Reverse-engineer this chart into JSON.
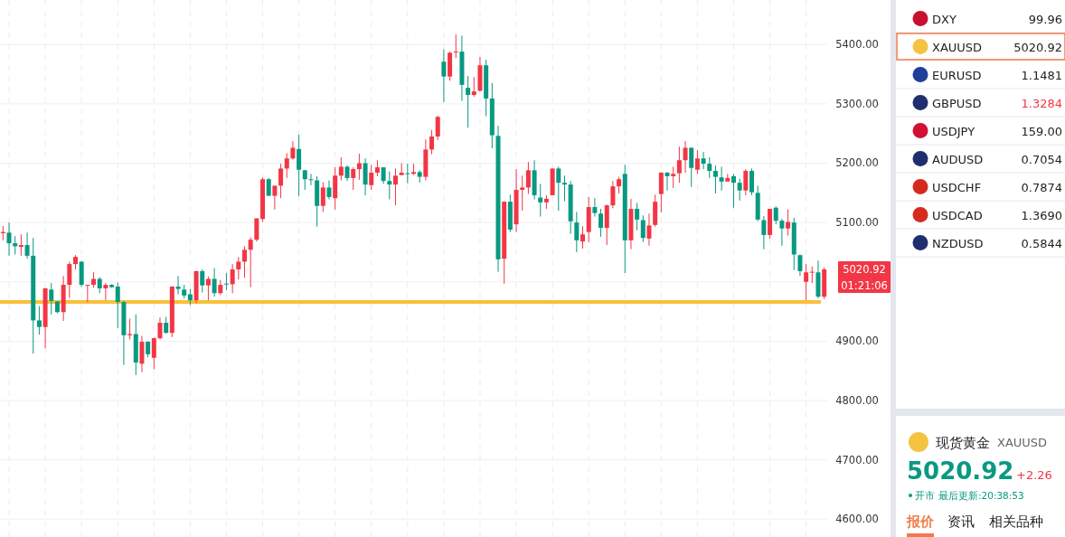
{
  "chart_data": [
    {
      "type": "candlestick",
      "tick_labels": "y",
      "grid": true,
      "categories": [
        null,
        null,
        null,
        null,
        null,
        null,
        null,
        null,
        null,
        null,
        null,
        null,
        null,
        null,
        null,
        null,
        null,
        null,
        null,
        null,
        null,
        null,
        null,
        null,
        null,
        null,
        null,
        null,
        null,
        null,
        null,
        null,
        null,
        null,
        null,
        null,
        null,
        null,
        null,
        null,
        null,
        null,
        null,
        null,
        null,
        null,
        null,
        null,
        null,
        null,
        null,
        null,
        null,
        null,
        null,
        null,
        null,
        null,
        null,
        null,
        null,
        null,
        null,
        null,
        null,
        null,
        null,
        null,
        null,
        null,
        null,
        null,
        null,
        null,
        null,
        null,
        null,
        null,
        null,
        null,
        null,
        null,
        null,
        null,
        null,
        null,
        null,
        null,
        null,
        null,
        null,
        null,
        null,
        null,
        null,
        null,
        null,
        null,
        null,
        null,
        null,
        null,
        null,
        null,
        null,
        null,
        null,
        null,
        null,
        null,
        null,
        null,
        null,
        null,
        null,
        null,
        null,
        null,
        null,
        null,
        null,
        null,
        null,
        null,
        null,
        null,
        null,
        null,
        null,
        null,
        null,
        null,
        null,
        null,
        null,
        null,
        null
      ],
      "ohlc": [
        [
          5082,
          5094,
          5070,
          5084
        ],
        [
          5083,
          5100,
          5044,
          5065
        ],
        [
          5065,
          5077,
          5046,
          5060
        ],
        [
          5059,
          5080,
          5044,
          5062
        ],
        [
          5062,
          5083,
          5039,
          5044
        ],
        [
          5044,
          5074,
          4879,
          4935
        ],
        [
          4935,
          4959,
          4911,
          4924
        ],
        [
          4924,
          4990,
          4888,
          4989
        ],
        [
          4987,
          4998,
          4945,
          4968
        ],
        [
          4967,
          4967,
          4947,
          4949
        ],
        [
          4949,
          5010,
          4934,
          4995
        ],
        [
          4995,
          5034,
          4973,
          5030
        ],
        [
          5030,
          5045,
          5021,
          5042
        ],
        [
          5034,
          5035,
          4992,
          4995
        ],
        [
          4994,
          4995,
          4966,
          4995
        ],
        [
          4995,
          5016,
          4990,
          5005
        ],
        [
          5005,
          5008,
          4981,
          4989
        ],
        [
          4989,
          4998,
          4969,
          4995
        ],
        [
          4995,
          4996,
          4990,
          4991
        ],
        [
          4992,
          4999,
          4922,
          4966
        ],
        [
          4966,
          4968,
          4860,
          4910
        ],
        [
          4910,
          4938,
          4903,
          4912
        ],
        [
          4912,
          4945,
          4843,
          4864
        ],
        [
          4862,
          4909,
          4848,
          4899
        ],
        [
          4899,
          4900,
          4873,
          4878
        ],
        [
          4872,
          4906,
          4853,
          4905
        ],
        [
          4905,
          4940,
          4903,
          4931
        ],
        [
          4931,
          4941,
          4913,
          4914
        ],
        [
          4914,
          4993,
          4907,
          4992
        ],
        [
          4992,
          5010,
          4979,
          4988
        ],
        [
          4987,
          4995,
          4972,
          4977
        ],
        [
          4979,
          4988,
          4961,
          4969
        ],
        [
          4969,
          5019,
          4964,
          5018
        ],
        [
          5018,
          5021,
          4982,
          4994
        ],
        [
          4994,
          5009,
          4969,
          5005
        ],
        [
          5005,
          5023,
          4975,
          4981
        ],
        [
          4981,
          5003,
          4978,
          4995
        ],
        [
          4997,
          5015,
          4986,
          4996
        ],
        [
          4996,
          5030,
          4981,
          5021
        ],
        [
          5021,
          5042,
          5004,
          5034
        ],
        [
          5034,
          5060,
          5007,
          5054
        ],
        [
          5054,
          5075,
          4991,
          5071
        ],
        [
          5071,
          5107,
          5068,
          5107
        ],
        [
          5106,
          5176,
          5101,
          5173
        ],
        [
          5173,
          5175,
          5145,
          5145
        ],
        [
          5145,
          5162,
          5122,
          5162
        ],
        [
          5162,
          5199,
          5141,
          5191
        ],
        [
          5191,
          5217,
          5175,
          5208
        ],
        [
          5208,
          5237,
          5206,
          5226
        ],
        [
          5224,
          5248,
          5145,
          5189
        ],
        [
          5188,
          5189,
          5155,
          5173
        ],
        [
          5173,
          5182,
          5163,
          5172
        ],
        [
          5171,
          5178,
          5093,
          5128
        ],
        [
          5128,
          5168,
          5118,
          5159
        ],
        [
          5159,
          5171,
          5139,
          5143
        ],
        [
          5141,
          5193,
          5122,
          5179
        ],
        [
          5179,
          5210,
          5171,
          5194
        ],
        [
          5194,
          5196,
          5170,
          5175
        ],
        [
          5175,
          5193,
          5155,
          5190
        ],
        [
          5190,
          5216,
          5172,
          5200
        ],
        [
          5200,
          5208,
          5146,
          5164
        ],
        [
          5163,
          5197,
          5155,
          5184
        ],
        [
          5184,
          5205,
          5178,
          5193
        ],
        [
          5193,
          5193,
          5165,
          5170
        ],
        [
          5170,
          5186,
          5139,
          5164
        ],
        [
          5164,
          5191,
          5129,
          5179
        ],
        [
          5180,
          5200,
          5180,
          5184
        ],
        [
          5183,
          5199,
          5166,
          5183
        ],
        [
          5182,
          5199,
          5180,
          5185
        ],
        [
          5185,
          5188,
          5167,
          5177
        ],
        [
          5177,
          5240,
          5171,
          5223
        ],
        [
          5223,
          5256,
          5215,
          5245
        ],
        [
          5245,
          5280,
          5239,
          5278
        ],
        [
          5371,
          5392,
          5303,
          5346
        ],
        [
          5346,
          5388,
          5339,
          5386
        ],
        [
          5387,
          5417,
          5377,
          5388
        ],
        [
          5388,
          5415,
          5305,
          5332
        ],
        [
          5327,
          5347,
          5260,
          5315
        ],
        [
          5315,
          5345,
          5312,
          5321
        ],
        [
          5322,
          5379,
          5321,
          5365
        ],
        [
          5365,
          5374,
          5279,
          5309
        ],
        [
          5309,
          5335,
          5225,
          5247
        ],
        [
          5246,
          5263,
          5017,
          5038
        ],
        [
          5039,
          5136,
          4997,
          5135
        ],
        [
          5135,
          5147,
          5084,
          5088
        ],
        [
          5097,
          5190,
          5084,
          5155
        ],
        [
          5155,
          5179,
          5120,
          5159
        ],
        [
          5159,
          5202,
          5148,
          5188
        ],
        [
          5188,
          5205,
          5139,
          5146
        ],
        [
          5142,
          5165,
          5110,
          5134
        ],
        [
          5134,
          5146,
          5123,
          5140
        ],
        [
          5146,
          5191,
          5146,
          5191
        ],
        [
          5191,
          5194,
          5120,
          5167
        ],
        [
          5167,
          5179,
          5136,
          5164
        ],
        [
          5164,
          5170,
          5081,
          5102
        ],
        [
          5100,
          5118,
          5050,
          5070
        ],
        [
          5068,
          5094,
          5056,
          5080
        ],
        [
          5084,
          5143,
          5067,
          5126
        ],
        [
          5126,
          5141,
          5110,
          5116
        ],
        [
          5115,
          5123,
          5076,
          5091
        ],
        [
          5091,
          5130,
          5062,
          5129
        ],
        [
          5129,
          5170,
          5124,
          5161
        ],
        [
          5161,
          5177,
          5149,
          5173
        ],
        [
          5182,
          5197,
          5015,
          5070
        ],
        [
          5070,
          5140,
          5055,
          5123
        ],
        [
          5123,
          5133,
          5087,
          5105
        ],
        [
          5104,
          5112,
          5067,
          5074
        ],
        [
          5073,
          5115,
          5061,
          5095
        ],
        [
          5096,
          5147,
          5093,
          5135
        ],
        [
          5148,
          5185,
          5117,
          5184
        ],
        [
          5184,
          5185,
          5154,
          5178
        ],
        [
          5178,
          5194,
          5158,
          5182
        ],
        [
          5183,
          5228,
          5167,
          5205
        ],
        [
          5205,
          5237,
          5184,
          5226
        ],
        [
          5226,
          5226,
          5160,
          5192
        ],
        [
          5189,
          5222,
          5182,
          5208
        ],
        [
          5208,
          5219,
          5190,
          5199
        ],
        [
          5199,
          5210,
          5175,
          5187
        ],
        [
          5187,
          5196,
          5149,
          5177
        ],
        [
          5176,
          5194,
          5154,
          5169
        ],
        [
          5169,
          5182,
          5169,
          5175
        ],
        [
          5178,
          5182,
          5125,
          5167
        ],
        [
          5167,
          5174,
          5137,
          5154
        ],
        [
          5154,
          5190,
          5146,
          5187
        ],
        [
          5187,
          5191,
          5146,
          5151
        ],
        [
          5150,
          5162,
          5102,
          5105
        ],
        [
          5104,
          5111,
          5055,
          5079
        ],
        [
          5079,
          5123,
          5073,
          5123
        ],
        [
          5125,
          5127,
          5097,
          5103
        ],
        [
          5103,
          5106,
          5061,
          5090
        ],
        [
          5090,
          5122,
          5078,
          5101
        ],
        [
          5100,
          5108,
          5020,
          5046
        ],
        [
          5045,
          5046,
          5010,
          5018
        ],
        [
          5000,
          5030,
          4969,
          5016
        ],
        [
          5017,
          5026,
          4998,
          5017
        ],
        [
          5016,
          5036,
          4972,
          4975
        ],
        [
          4975,
          5024,
          4971,
          5021
        ]
      ],
      "colors": [
        "#f23645",
        "#089981",
        "#089981",
        "#f23645",
        "#089981",
        "#089981",
        "#089981",
        "#f23645",
        "#089981",
        "#089981",
        "#f23645",
        "#f23645",
        "#f23645",
        "#089981",
        "#f23645",
        "#f23645",
        "#089981",
        "#f23645",
        "#089981",
        "#089981",
        "#089981",
        "#f23645",
        "#089981",
        "#f23645",
        "#089981",
        "#f23645",
        "#f23645",
        "#089981",
        "#f23645",
        "#089981",
        "#089981",
        "#089981",
        "#f23645",
        "#089981",
        "#f23645",
        "#089981",
        "#f23645",
        "#089981",
        "#f23645",
        "#f23645",
        "#f23645",
        "#f23645",
        "#f23645",
        "#f23645",
        "#089981",
        "#f23645",
        "#f23645",
        "#f23645",
        "#f23645",
        "#089981",
        "#089981",
        "#089981",
        "#089981",
        "#f23645",
        "#089981",
        "#f23645",
        "#f23645",
        "#089981",
        "#f23645",
        "#f23645",
        "#089981",
        "#f23645",
        "#f23645",
        "#089981",
        "#089981",
        "#f23645",
        "#f23645",
        "#089981",
        "#f23645",
        "#089981",
        "#f23645",
        "#f23645",
        "#f23645",
        "#089981",
        "#f23645",
        "#f23645",
        "#089981",
        "#089981",
        "#f23645",
        "#f23645",
        "#089981",
        "#089981",
        "#089981",
        "#f23645",
        "#089981",
        "#f23645",
        "#f23645",
        "#f23645",
        "#089981",
        "#089981",
        "#f23645",
        "#f23645",
        "#089981",
        "#089981",
        "#089981",
        "#089981",
        "#f23645",
        "#f23645",
        "#089981",
        "#089981",
        "#f23645",
        "#f23645",
        "#f23645",
        "#089981",
        "#f23645",
        "#089981",
        "#089981",
        "#f23645",
        "#f23645",
        "#f23645",
        "#089981",
        "#f23645",
        "#f23645",
        "#f23645",
        "#089981",
        "#f23645",
        "#089981",
        "#089981",
        "#089981",
        "#089981",
        "#f23645",
        "#089981",
        "#089981",
        "#f23645",
        "#089981",
        "#089981",
        "#089981",
        "#f23645",
        "#089981",
        "#089981",
        "#f23645",
        "#089981",
        "#089981",
        "#f23645",
        "#f23645",
        "#089981",
        "#f23645"
      ],
      "ylim": [
        4570,
        5475
      ],
      "yticks": [
        {
          "value": 4600,
          "label": "4600.00"
        },
        {
          "value": 4700,
          "label": "4700.00"
        },
        {
          "value": 4800,
          "label": "4800.00"
        },
        {
          "value": 4900,
          "label": "4900.00"
        },
        {
          "value": 5000,
          "label": null
        },
        {
          "value": 5100,
          "label": "5100.00"
        },
        {
          "value": 5200,
          "label": "5200.00"
        },
        {
          "value": 5300,
          "label": "5300.00"
        },
        {
          "value": 5400,
          "label": "5400.00"
        }
      ],
      "ref_lines": [
        {
          "axis": "y",
          "value": 4966,
          "color": "#fbbf3a"
        }
      ],
      "annotations": [
        "5020.92",
        "01:21:06"
      ]
    },
    {
      "type": "other",
      "title": "现货黄金",
      "subtitle": "XAUUSD",
      "categories": [
        "DXY",
        "XAUUSD",
        "EURUSD",
        "GBPUSD",
        "USDJPY",
        "AUDUSD",
        "USDCHF",
        "USDCAD",
        "NZDUSD"
      ],
      "value_labels": [
        "99.96",
        "5020.92",
        "1.1481",
        "1.3284",
        "159.00",
        "0.7054",
        "0.7874",
        "1.3690",
        "0.5844"
      ],
      "annotations": [
        "5020.92",
        "+2.26",
        "开市",
        "最后更新:20:38:53",
        "报价",
        "资讯",
        "相关品种"
      ]
    }
  ]
}
